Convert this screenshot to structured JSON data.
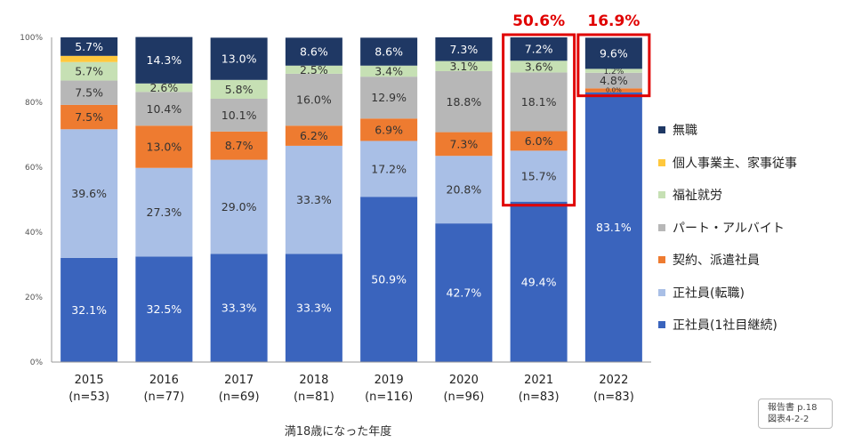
{
  "chart_data": {
    "type": "bar",
    "stacked": true,
    "categories": [
      "2015",
      "2016",
      "2017",
      "2018",
      "2019",
      "2020",
      "2021",
      "2022"
    ],
    "category_sublabels": [
      "(n=53)",
      "(n=77)",
      "(n=69)",
      "(n=81)",
      "(n=116)",
      "(n=96)",
      "(n=83)",
      "(n=83)"
    ],
    "xlabel": "満18歳になった年度",
    "ylabel": "",
    "ylim": [
      0,
      100
    ],
    "yticks": [
      "0%",
      "20%",
      "40%",
      "60%",
      "80%",
      "100%"
    ],
    "series": [
      {
        "name": "正社員(1社目継続)",
        "color": "#3a64bd",
        "label_color": "#ffffff",
        "values": [
          32.1,
          32.5,
          33.3,
          33.3,
          50.9,
          42.7,
          49.4,
          83.1
        ],
        "labels": [
          "32.1%",
          "32.5%",
          "33.3%",
          "33.3%",
          "50.9%",
          "42.7%",
          "49.4%",
          "83.1%"
        ]
      },
      {
        "name": "正社員(転職)",
        "color": "#a9bfe6",
        "label_color": "#333333",
        "values": [
          39.6,
          27.3,
          29.0,
          33.3,
          17.2,
          20.8,
          15.7,
          0
        ],
        "labels": [
          "39.6%",
          "27.3%",
          "29.0%",
          "33.3%",
          "17.2%",
          "20.8%",
          "15.7%",
          ""
        ]
      },
      {
        "name": "契約、派遣社員",
        "color": "#ee7b30",
        "label_color": "#333333",
        "values": [
          7.5,
          13.0,
          8.7,
          6.2,
          6.9,
          7.3,
          6.0,
          1.2
        ],
        "labels": [
          "7.5%",
          "13.0%",
          "8.7%",
          "6.2%",
          "6.9%",
          "7.3%",
          "6.0%",
          ""
        ]
      },
      {
        "name": "パート・アルバイト",
        "color": "#b7b7b7",
        "label_color": "#333333",
        "values": [
          7.5,
          10.4,
          10.1,
          16.0,
          12.9,
          18.8,
          18.1,
          4.8
        ],
        "labels": [
          "7.5%",
          "10.4%",
          "10.1%",
          "16.0%",
          "12.9%",
          "18.8%",
          "18.1%",
          "4.8%"
        ]
      },
      {
        "name": "福祉就労",
        "color": "#c6e0b4",
        "label_color": "#333333",
        "values": [
          5.7,
          2.6,
          5.8,
          2.5,
          3.4,
          3.1,
          3.6,
          1.2
        ],
        "labels": [
          "5.7%",
          "2.6%",
          "5.8%",
          "2.5%",
          "3.4%",
          "3.1%",
          "3.6%",
          "1.2%"
        ]
      },
      {
        "name": "個人事業主、家事従事",
        "color": "#ffc83d",
        "label_color": "#333333",
        "values": [
          1.9,
          0,
          0,
          0,
          0,
          0,
          0,
          0
        ],
        "labels": [
          "",
          "",
          "",
          "",
          "",
          "",
          "",
          ""
        ]
      },
      {
        "name": "無職",
        "color": "#1f3864",
        "label_color": "#ffffff",
        "values": [
          5.7,
          14.3,
          13.0,
          8.6,
          8.6,
          7.3,
          7.2,
          9.6
        ],
        "labels": [
          "5.7%",
          "14.3%",
          "13.0%",
          "8.6%",
          "8.6%",
          "7.3%",
          "7.2%",
          "9.6%"
        ]
      }
    ],
    "extra_labels": [
      {
        "category_index": 7,
        "text": "0.0%"
      }
    ],
    "highlights": [
      {
        "category_index": 6,
        "text": "50.6%",
        "color": "#e00000"
      },
      {
        "category_index": 7,
        "text": "16.9%",
        "color": "#e00000"
      }
    ],
    "grid": false,
    "legend_position": "right"
  },
  "note": {
    "line1": "報告書 p.18",
    "line2": "図表4-2-2"
  }
}
